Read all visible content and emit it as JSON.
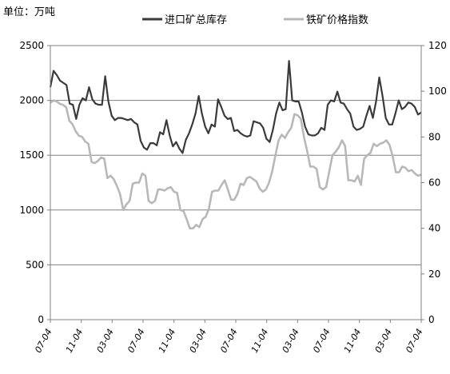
{
  "chart_data": {
    "type": "line",
    "unit_label": "单位：万吨",
    "x_tick_labels": [
      "07-04",
      "11-04",
      "03-04",
      "07-04",
      "11-04",
      "03-04",
      "07-04",
      "11-04",
      "03-04",
      "07-04",
      "11-04",
      "03-04",
      "07-04"
    ],
    "y_left": {
      "ylim": [
        0,
        2500
      ],
      "ticks": [
        0,
        500,
        1000,
        1500,
        2000,
        2500
      ]
    },
    "y_right": {
      "ylim": [
        0,
        120
      ],
      "ticks": [
        0,
        20,
        40,
        60,
        80,
        100,
        120
      ]
    },
    "grid": "horizontal",
    "legend_position": "top",
    "series": [
      {
        "name": "进口矿总库存",
        "axis": "left",
        "color": "#3a3a3a",
        "values": [
          2120,
          2270,
          2230,
          2180,
          2160,
          2140,
          1970,
          1960,
          1830,
          1960,
          2020,
          2000,
          2120,
          2010,
          1970,
          1960,
          1960,
          2220,
          1990,
          1860,
          1820,
          1840,
          1840,
          1830,
          1820,
          1830,
          1800,
          1780,
          1630,
          1570,
          1550,
          1610,
          1610,
          1590,
          1710,
          1690,
          1820,
          1680,
          1580,
          1620,
          1560,
          1520,
          1640,
          1700,
          1780,
          1880,
          2040,
          1880,
          1760,
          1700,
          1780,
          1760,
          2010,
          1940,
          1860,
          1830,
          1840,
          1720,
          1730,
          1700,
          1680,
          1670,
          1680,
          1810,
          1800,
          1790,
          1750,
          1650,
          1620,
          1730,
          1880,
          1980,
          1910,
          1920,
          2360,
          2000,
          1990,
          1990,
          1890,
          1760,
          1690,
          1680,
          1680,
          1700,
          1750,
          1730,
          1960,
          2000,
          1990,
          2080,
          1980,
          1970,
          1920,
          1880,
          1760,
          1730,
          1740,
          1760,
          1860,
          1950,
          1840,
          1990,
          2210,
          2040,
          1840,
          1780,
          1780,
          1880,
          2000,
          1920,
          1940,
          1980,
          1970,
          1940,
          1870,
          1890
        ]
      },
      {
        "name": "铁矿价格指数",
        "axis": "right",
        "color": "#b8b8b8",
        "values": [
          95.0,
          96.0,
          95.5,
          94.5,
          94.0,
          93.0,
          87.0,
          85.5,
          82.5,
          80.5,
          80.0,
          78.0,
          77.0,
          69.0,
          68.5,
          69.5,
          71.0,
          70.5,
          62.0,
          63.0,
          61.5,
          58.5,
          55.0,
          48.0,
          50.5,
          52.0,
          59.5,
          60.0,
          60.0,
          64.0,
          63.0,
          52.0,
          51.0,
          52.0,
          57.0,
          57.0,
          56.5,
          57.5,
          58.0,
          56.0,
          55.5,
          48.0,
          47.5,
          44.0,
          40.0,
          40.0,
          41.5,
          40.5,
          44.0,
          45.0,
          48.5,
          56.0,
          56.5,
          56.5,
          59.0,
          61.0,
          57.0,
          52.5,
          52.5,
          55.0,
          59.5,
          59.0,
          62.0,
          62.5,
          61.5,
          60.5,
          57.5,
          56.0,
          57.0,
          60.0,
          65.0,
          72.0,
          78.5,
          81.0,
          79.5,
          82.0,
          84.0,
          90.0,
          89.5,
          88.0,
          80.0,
          74.0,
          67.0,
          67.0,
          66.0,
          58.0,
          57.0,
          58.0,
          65.0,
          72.0,
          73.5,
          75.5,
          78.5,
          76.0,
          61.0,
          61.0,
          60.5,
          63.0,
          59.0,
          70.5,
          72.0,
          73.0,
          77.0,
          76.0,
          77.0,
          77.5,
          78.5,
          76.5,
          71.5,
          64.5,
          64.5,
          67.0,
          66.5,
          65.0,
          65.5,
          64.0,
          63.0,
          63.5
        ]
      }
    ]
  }
}
